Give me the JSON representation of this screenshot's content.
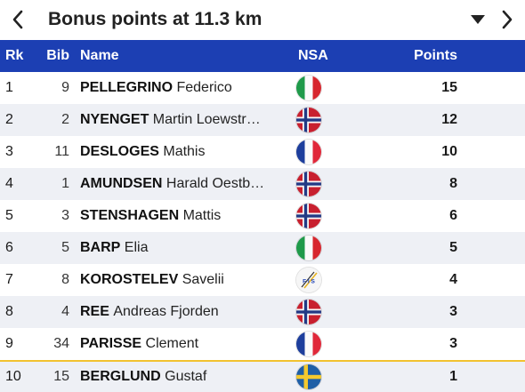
{
  "header": {
    "title": "Bonus points at 11.3 km",
    "prev_icon": "chevron-left-icon",
    "dropdown_icon": "caret-down-icon",
    "next_icon": "chevron-right-icon"
  },
  "table": {
    "columns": {
      "rk": "Rk",
      "bib": "Bib",
      "name": "Name",
      "nsa": "NSA",
      "points": "Points"
    },
    "colors": {
      "header_bg": "#1c3fb3",
      "alt_row_bg": "#eef0f5",
      "highlight_border": "#f2c230"
    },
    "rows": [
      {
        "rk": "1",
        "bib": "9",
        "last": "PELLEGRINO",
        "first": "Federico",
        "nsa": "ITA",
        "points": "15"
      },
      {
        "rk": "2",
        "bib": "2",
        "last": "NYENGET",
        "first": "Martin Loewstr…",
        "nsa": "NOR",
        "points": "12"
      },
      {
        "rk": "3",
        "bib": "11",
        "last": "DESLOGES",
        "first": "Mathis",
        "nsa": "FRA",
        "points": "10"
      },
      {
        "rk": "4",
        "bib": "1",
        "last": "AMUNDSEN",
        "first": "Harald Oestb…",
        "nsa": "NOR",
        "points": "8"
      },
      {
        "rk": "5",
        "bib": "3",
        "last": "STENSHAGEN",
        "first": "Mattis",
        "nsa": "NOR",
        "points": "6"
      },
      {
        "rk": "6",
        "bib": "5",
        "last": "BARP",
        "first": "Elia",
        "nsa": "ITA",
        "points": "5"
      },
      {
        "rk": "7",
        "bib": "8",
        "last": "KOROSTELEV",
        "first": "Savelii",
        "nsa": "FIS",
        "points": "4"
      },
      {
        "rk": "8",
        "bib": "4",
        "last": "REE",
        "first": "Andreas Fjorden",
        "nsa": "NOR",
        "points": "3"
      },
      {
        "rk": "9",
        "bib": "34",
        "last": "PARISSE",
        "first": "Clement",
        "nsa": "FRA",
        "points": "3"
      },
      {
        "rk": "10",
        "bib": "15",
        "last": "BERGLUND",
        "first": "Gustaf",
        "nsa": "SWE",
        "points": "1"
      }
    ]
  }
}
